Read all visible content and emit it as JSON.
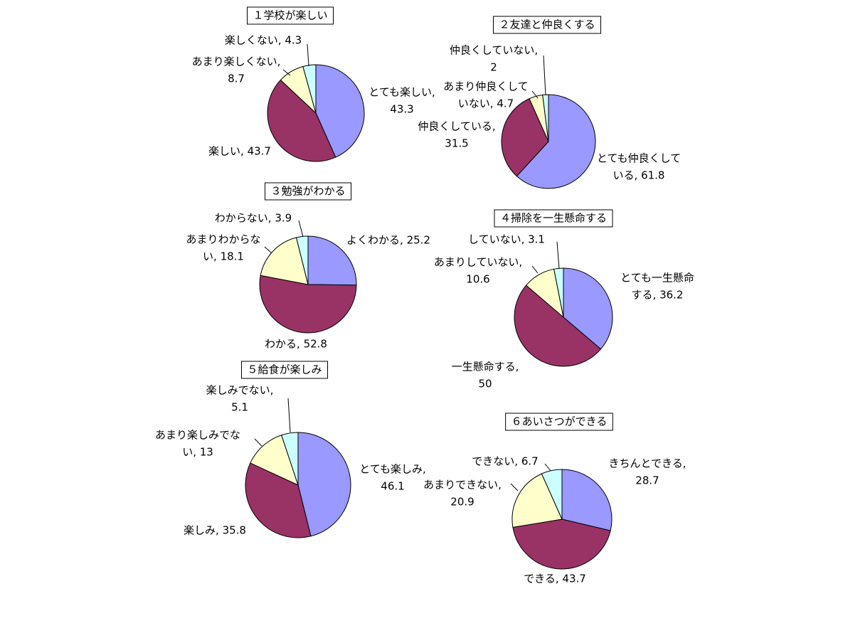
{
  "chart_data": [
    {
      "type": "pie",
      "title": "１学校が楽しい",
      "values": [
        43.3,
        43.7,
        8.7,
        4.3
      ],
      "value_labels": [
        [
          "とても楽しい,",
          "43.3"
        ],
        [
          "楽しい, 43.7"
        ],
        [
          "あまり楽しくない,",
          "8.7"
        ],
        [
          "楽しくない, 4.3"
        ]
      ],
      "colors": [
        "#9999ff",
        "#993366",
        "#ffffcc",
        "#ccffff"
      ]
    },
    {
      "type": "pie",
      "title": "２友達と仲良くする",
      "values": [
        61.8,
        31.5,
        4.7,
        2
      ],
      "value_labels": [
        [
          "とても仲良くして",
          "いる, 61.8"
        ],
        [
          "仲良くしている,",
          "31.5"
        ],
        [
          "あまり仲良くして",
          "いない, 4.7"
        ],
        [
          "仲良くしていない,",
          "2"
        ]
      ],
      "colors": [
        "#9999ff",
        "#993366",
        "#ffffcc",
        "#ccffff"
      ]
    },
    {
      "type": "pie",
      "title": "３勉強がわかる",
      "values": [
        25.2,
        52.8,
        18.1,
        3.9
      ],
      "value_labels": [
        [
          "よくわかる, 25.2"
        ],
        [
          "わかる, 52.8"
        ],
        [
          "あまりわからな",
          "い, 18.1"
        ],
        [
          "わからない, 3.9"
        ]
      ],
      "colors": [
        "#9999ff",
        "#993366",
        "#ffffcc",
        "#ccffff"
      ]
    },
    {
      "type": "pie",
      "title": "４掃除を一生懸命する",
      "values": [
        36.2,
        50,
        10.6,
        3.1
      ],
      "value_labels": [
        [
          "とても一生懸命",
          "する, 36.2"
        ],
        [
          "一生懸命する,",
          "50"
        ],
        [
          "あまりしていない,",
          "10.6"
        ],
        [
          "していない, 3.1"
        ]
      ],
      "colors": [
        "#9999ff",
        "#993366",
        "#ffffcc",
        "#ccffff"
      ]
    },
    {
      "type": "pie",
      "title": "５給食が楽しみ",
      "values": [
        46.1,
        35.8,
        13,
        5.1
      ],
      "value_labels": [
        [
          "とても楽しみ,",
          "46.1"
        ],
        [
          "楽しみ, 35.8"
        ],
        [
          "あまり楽しみでな",
          "い, 13"
        ],
        [
          "楽しみでない,",
          "5.1"
        ]
      ],
      "colors": [
        "#9999ff",
        "#993366",
        "#ffffcc",
        "#ccffff"
      ]
    },
    {
      "type": "pie",
      "title": "６あいさつができる",
      "values": [
        28.7,
        43.7,
        20.9,
        6.7
      ],
      "value_labels": [
        [
          "きちんとできる,",
          "28.7"
        ],
        [
          "できる, 43.7"
        ],
        [
          "あまりできない,",
          "20.9"
        ],
        [
          "できない, 6.7"
        ]
      ],
      "colors": [
        "#9999ff",
        "#993366",
        "#ffffcc",
        "#ccffff"
      ]
    }
  ]
}
